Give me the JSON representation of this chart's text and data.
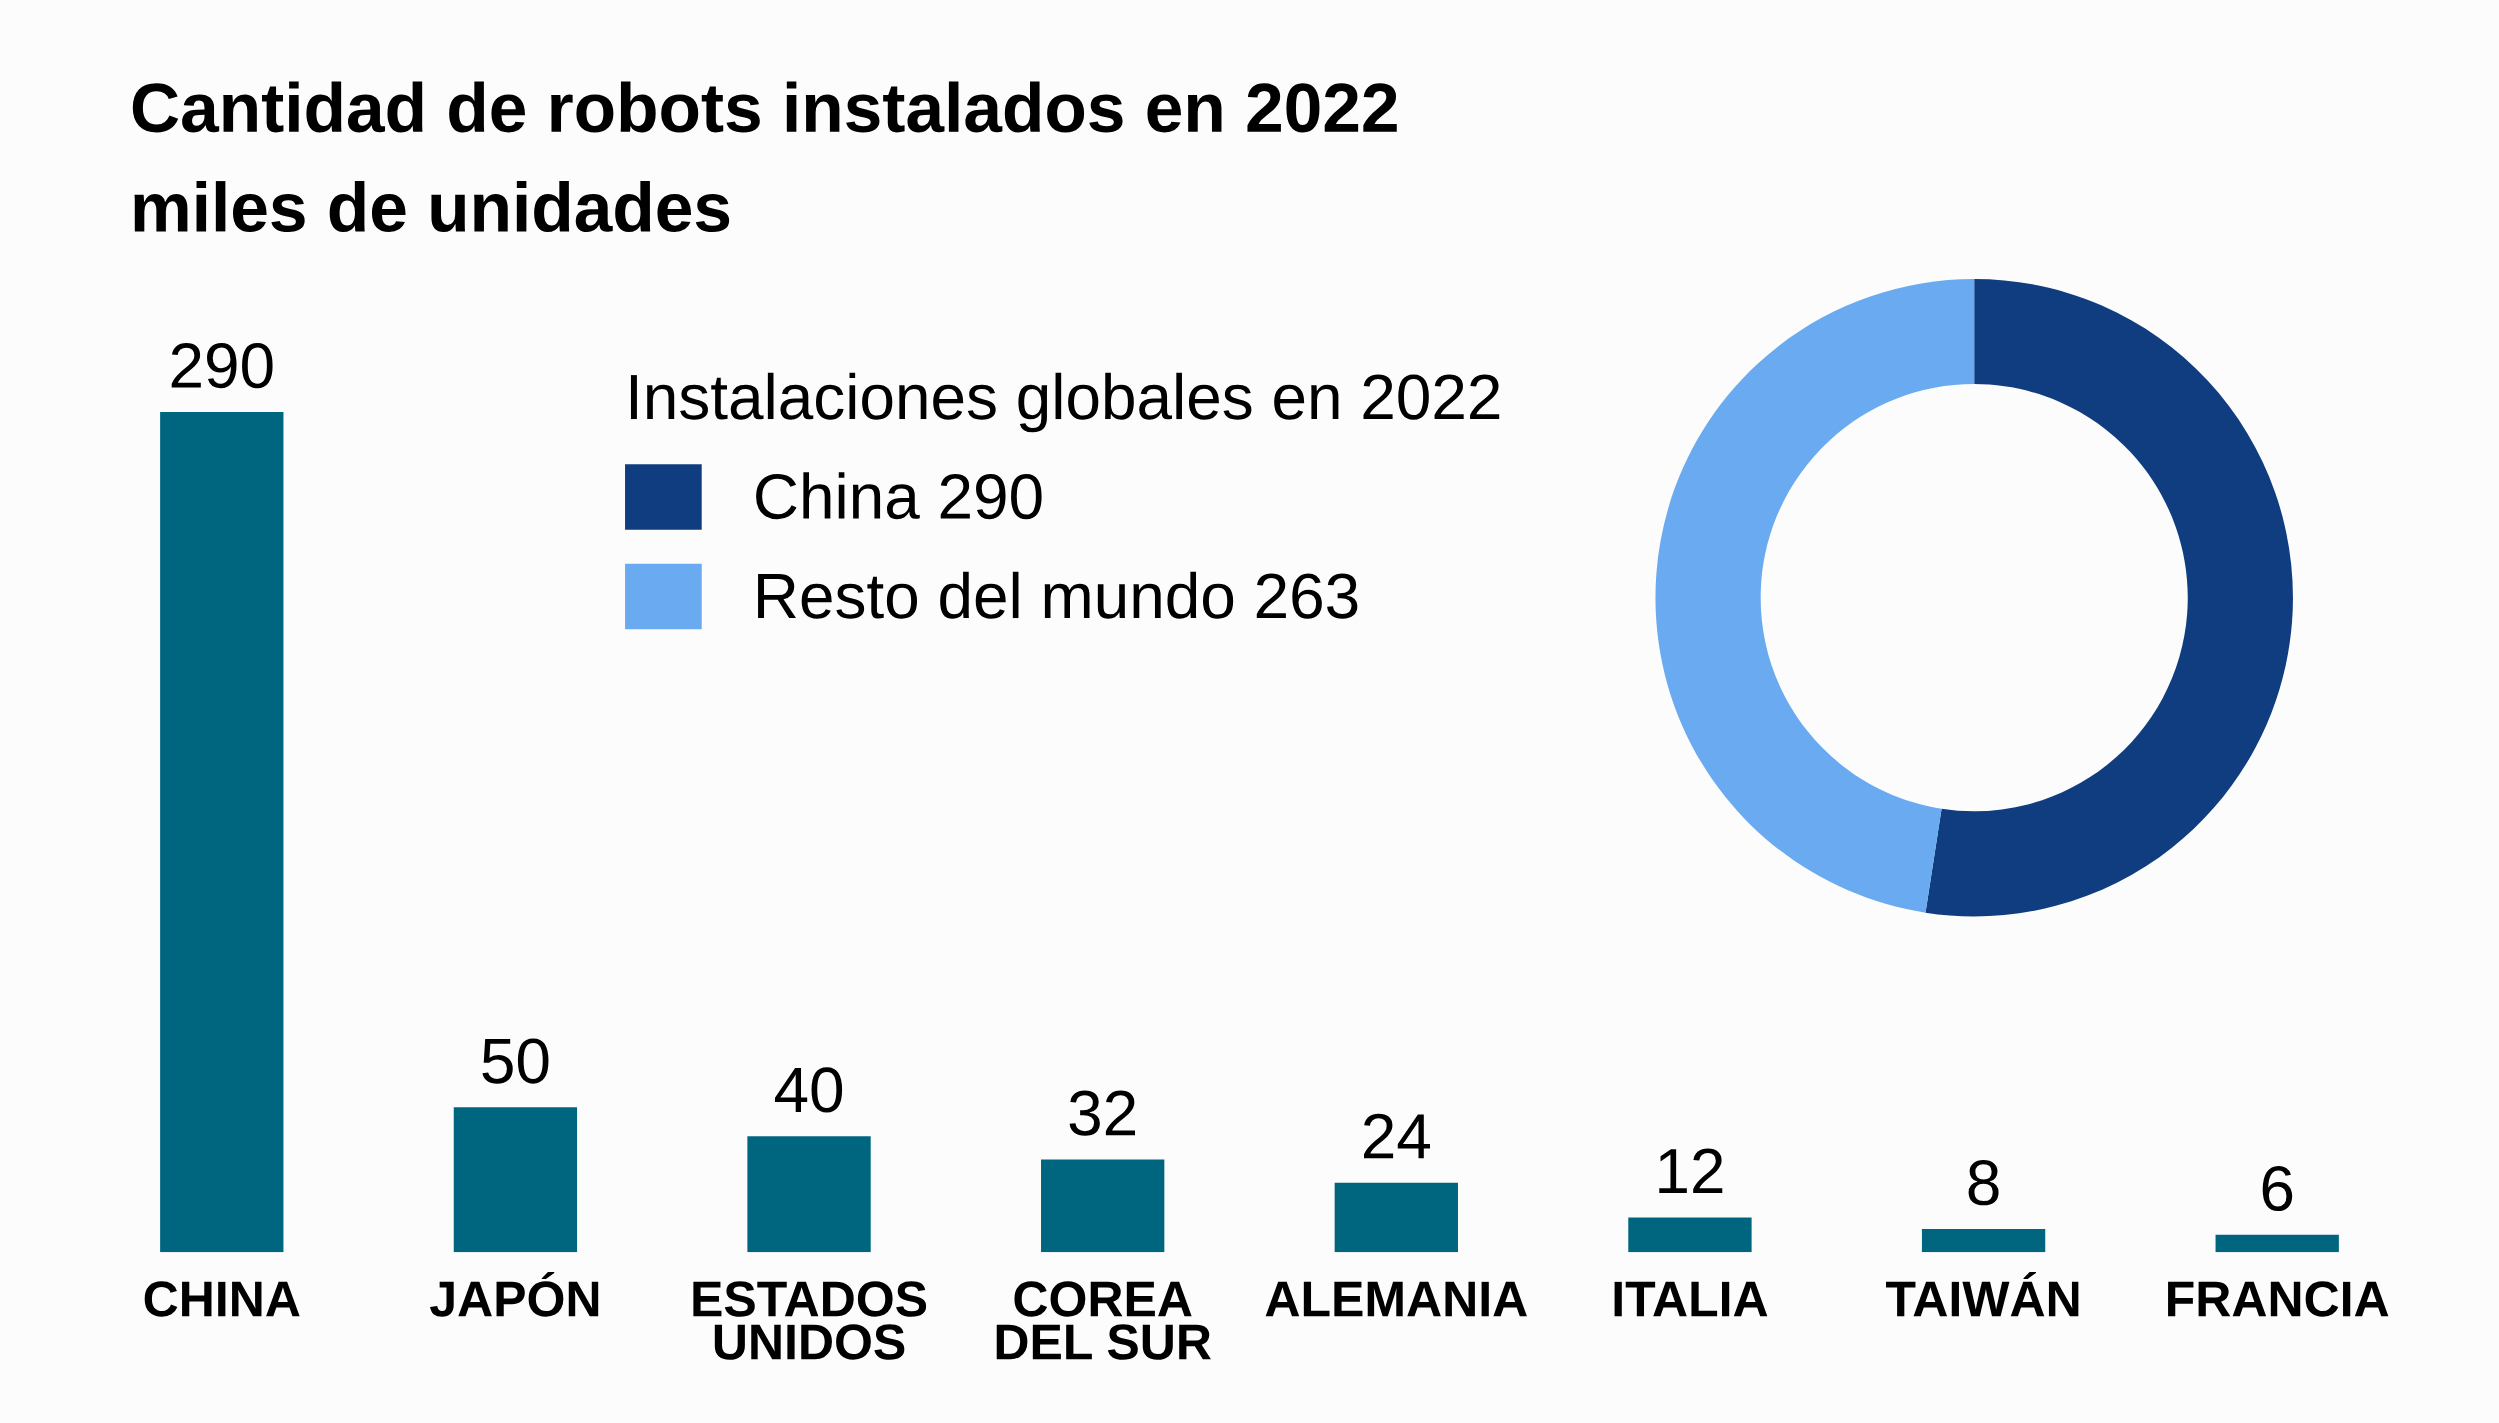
{
  "chart_data": [
    {
      "type": "bar",
      "title": "Cantidad de robots instalados en 2022",
      "subtitle": "miles de unidades",
      "categories": [
        "CHINA",
        "JAPÓN",
        "ESTADOS\nUNIDOS",
        "COREA\nDEL SUR",
        "ALEMANIA",
        "ITALIA",
        "TAIWÁN",
        "FRANCIA"
      ],
      "values": [
        290,
        50,
        40,
        32,
        24,
        12,
        8,
        6
      ],
      "color": "#006680",
      "data_labels": true,
      "tick_labels": "x",
      "grid": false,
      "legend": false
    },
    {
      "type": "donut",
      "legend_title": "Instalaciones globales en 2022",
      "categories": [
        "China 290",
        "Resto del mundo 263"
      ],
      "values": [
        290,
        263
      ],
      "colors": [
        "#0f3d80",
        "#6aaaf0"
      ],
      "legend": "left"
    }
  ]
}
